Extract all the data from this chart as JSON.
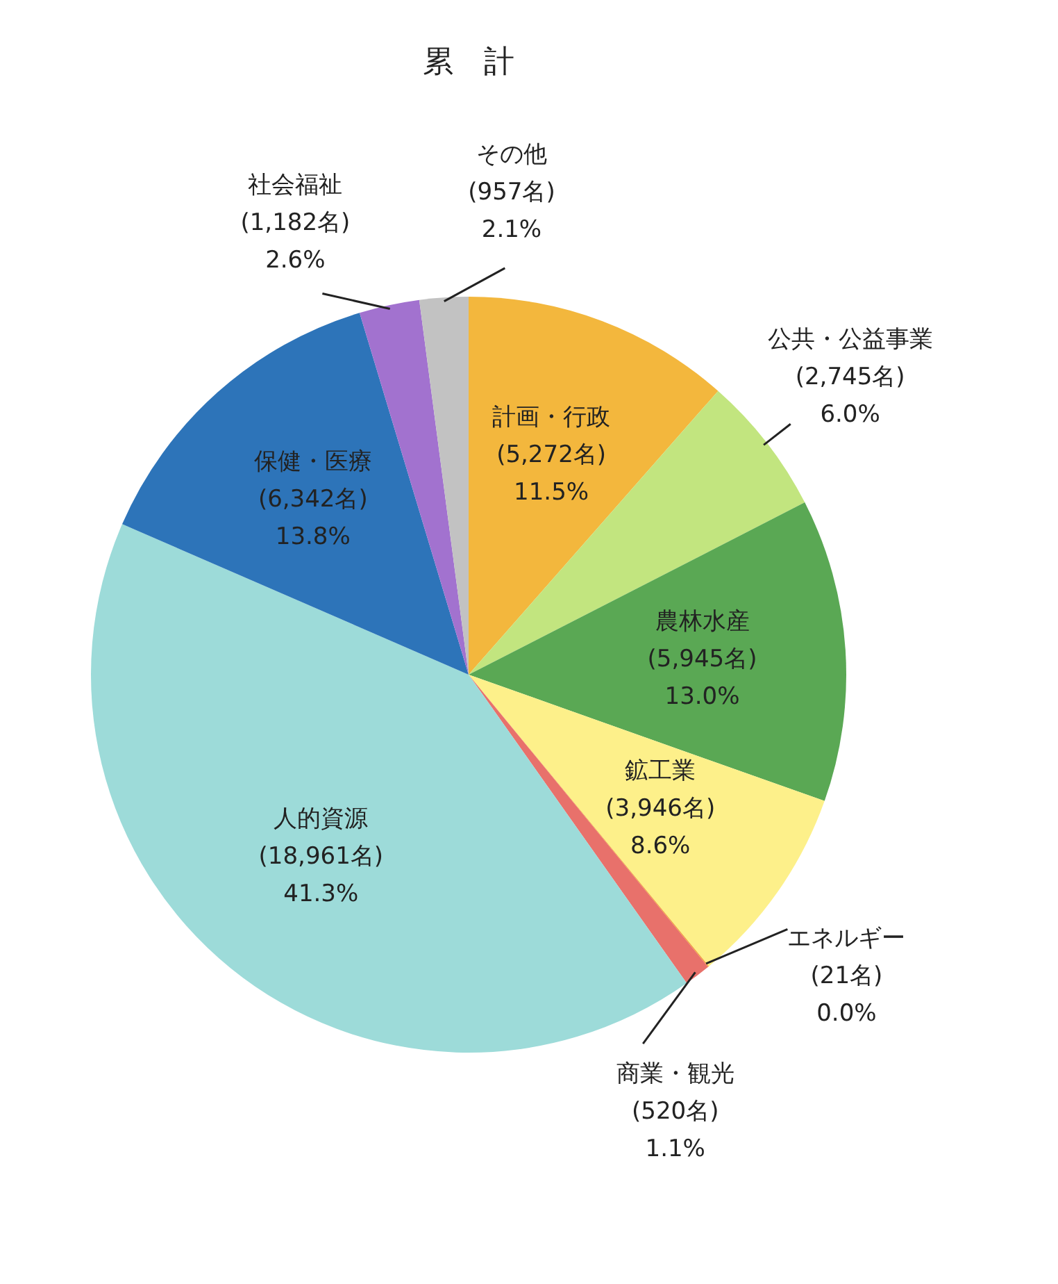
{
  "chart_data": {
    "type": "pie",
    "title": "累　計",
    "categories": [
      "計画・行政",
      "公共・公益事業",
      "農林水産",
      "鉱工業",
      "エネルギー",
      "商業・観光",
      "人的資源",
      "保健・医療",
      "社会福祉",
      "その他"
    ],
    "values": [
      5272,
      2745,
      5945,
      3946,
      21,
      520,
      18961,
      6342,
      1182,
      957
    ],
    "value_labels": [
      "(5,272名)\n11.5%",
      "(2,745名)\n6.0%",
      "(5,945名)\n13.0%",
      "(3,946名)\n8.6%",
      "(21名)\n0.0%",
      "(520名)\n1.1%",
      "(18,961名)\n41.3%",
      "(6,342名)\n13.8%",
      "(1,182名)\n2.6%",
      "(957名)\n2.1%"
    ],
    "colors": [
      "#f3b73d",
      "#c2e57f",
      "#5aa854",
      "#fdf08a",
      "#f2a33a",
      "#e8716b",
      "#9ddbd9",
      "#2d74b9",
      "#a272cf",
      "#c2c2c2"
    ]
  }
}
